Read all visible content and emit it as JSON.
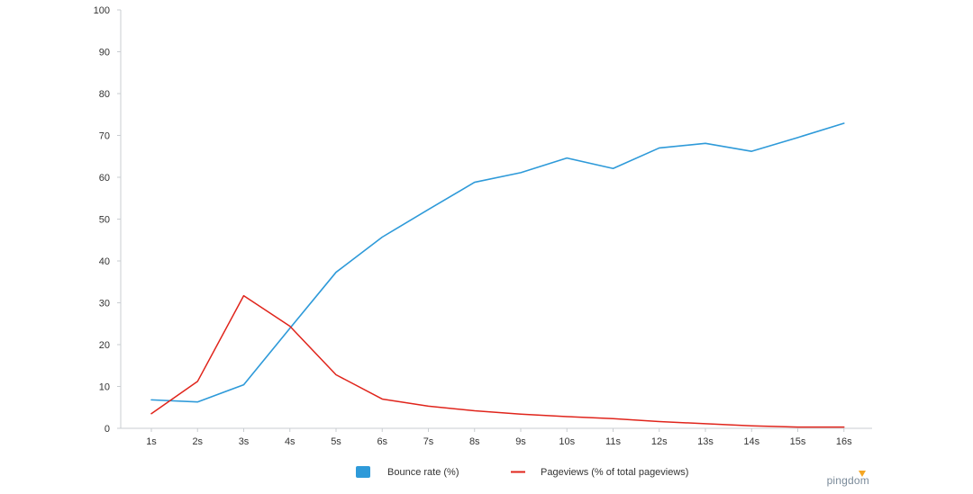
{
  "chart_data": {
    "type": "line",
    "title": "",
    "xlabel": "",
    "ylabel": "",
    "categories": [
      "1s",
      "2s",
      "3s",
      "4s",
      "5s",
      "6s",
      "7s",
      "8s",
      "9s",
      "10s",
      "11s",
      "12s",
      "13s",
      "14s",
      "15s",
      "16s"
    ],
    "ylim": [
      0,
      100
    ],
    "yticks": [
      0,
      10,
      20,
      30,
      40,
      50,
      60,
      70,
      80,
      90,
      100
    ],
    "grid": false,
    "legend_position": "bottom",
    "series": [
      {
        "name": "Bounce rate  (%)",
        "color": "#2e9ad9",
        "legend_marker": "square",
        "values": [
          6.8,
          6.3,
          10.4,
          23.9,
          37.3,
          45.7,
          52.3,
          58.8,
          61.1,
          64.6,
          62.1,
          67.0,
          68.1,
          66.2,
          69.5,
          72.9
        ]
      },
      {
        "name": "Pageviews (% of total pageviews)",
        "color": "#e0241b",
        "legend_marker": "line",
        "values": [
          3.5,
          11.2,
          31.7,
          24.4,
          12.8,
          7.0,
          5.3,
          4.2,
          3.4,
          2.8,
          2.3,
          1.6,
          1.1,
          0.6,
          0.3,
          0.3
        ]
      }
    ]
  },
  "branding": {
    "logo_text": "pingdom",
    "logo_icon": "pingdom-logo-icon",
    "logo_accent_color": "#f5a623"
  }
}
